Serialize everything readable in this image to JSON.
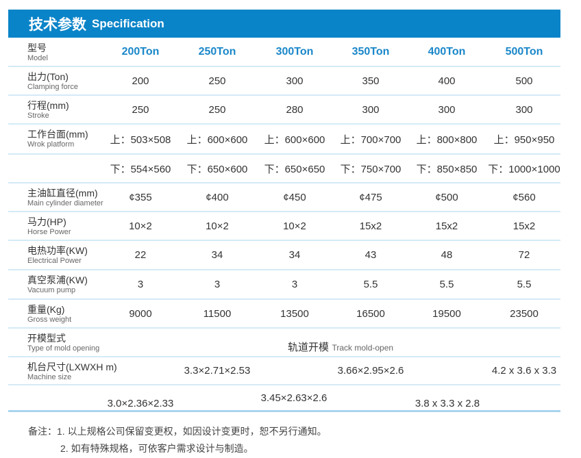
{
  "title": {
    "zh": "技术参数",
    "en": "Specification"
  },
  "colors": {
    "accent": "#0a84c8",
    "divider": "#d4eaf6"
  },
  "rows": [
    {
      "zh": "型号",
      "en": "Model",
      "values": [
        "200Ton",
        "250Ton",
        "300Ton",
        "350Ton",
        "400Ton",
        "500Ton"
      ]
    },
    {
      "zh": "出力(Ton)",
      "en": "Clamping force",
      "values": [
        "200",
        "250",
        "300",
        "350",
        "400",
        "500"
      ]
    },
    {
      "zh": "行程(mm)",
      "en": "Stroke",
      "values": [
        "250",
        "250",
        "280",
        "300",
        "300",
        "300"
      ]
    },
    {
      "zh": "工作台面(mm)",
      "en": "Wrok platform",
      "values": [
        "上：503×508",
        "上：600×600",
        "上：600×600",
        "上：700×700",
        "上：800×800",
        "上：950×950"
      ]
    },
    {
      "zh": "",
      "en": "",
      "values": [
        "下：554×560",
        "下：650×600",
        "下：650×650",
        "下：750×700",
        "下：850×850",
        "下：1000×1000"
      ]
    },
    {
      "zh": "主油缸直径(mm)",
      "en": "Main cylinder diameter",
      "values": [
        "¢355",
        "¢400",
        "¢450",
        "¢475",
        "¢500",
        "¢560"
      ]
    },
    {
      "zh": "马力(HP)",
      "en": "Horse Power",
      "values": [
        "10×2",
        "10×2",
        "10×2",
        "15x2",
        "15x2",
        "15x2"
      ]
    },
    {
      "zh": "电热功率(KW)",
      "en": "Electrical Power",
      "values": [
        "22",
        "34",
        "34",
        "43",
        "48",
        "72"
      ]
    },
    {
      "zh": "真空泵浦(KW)",
      "en": "Vacuum pump",
      "values": [
        "3",
        "3",
        "3",
        "5.5",
        "5.5",
        "5.5"
      ]
    },
    {
      "zh": "重量(Kg)",
      "en": "Gross weight",
      "values": [
        "9000",
        "11500",
        "13500",
        "16500",
        "19500",
        "23500"
      ]
    }
  ],
  "mold_opening": {
    "zh": "开模型式",
    "en": "Type of mold opening",
    "value_zh": "轨道开模",
    "value_en": "Track mold-open"
  },
  "machine_size": {
    "zh": "机台尺寸(LXWXH m)",
    "en": "Machine size",
    "values": [
      "3.0×2.36×2.33",
      "3.3×2.71×2.53",
      "3.45×2.63×2.6",
      "3.66×2.95×2.6",
      "3.8 x 3.3 x 2.8",
      "4.2 x 3.6 x 3.3"
    ]
  },
  "notes": [
    "备注：1. 以上规格公司保留变更权，如因设计变更时，恕不另行通知。",
    "2. 如有特殊规格，可依客户需求设计与制造。"
  ]
}
